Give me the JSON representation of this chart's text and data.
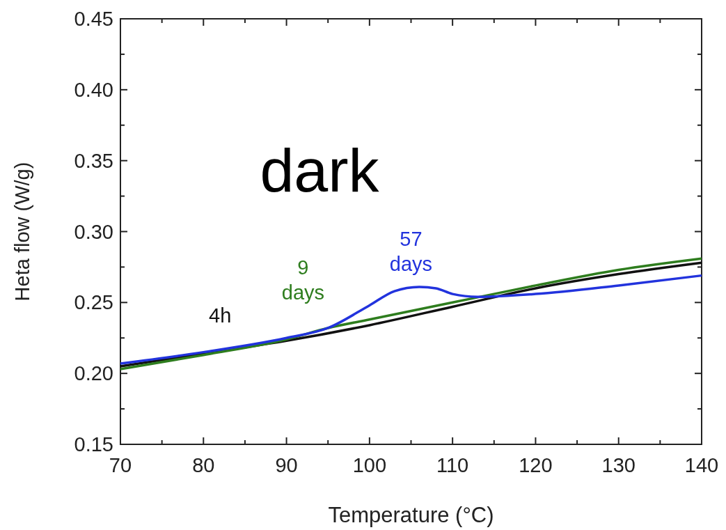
{
  "chart_data": {
    "type": "line",
    "xlabel": "Temperature (°C)",
    "ylabel": "Heta flow (W/g)",
    "annotations": [
      "dark"
    ],
    "xlim": [
      70,
      140
    ],
    "xticks": [
      70,
      80,
      90,
      100,
      110,
      120,
      130,
      140
    ],
    "ylim": [
      0.15,
      0.45
    ],
    "yticks": [
      0.15,
      {
        "value": 0.2,
        "label": "0.20"
      },
      0.25,
      {
        "value": 0.3,
        "label": "0.30"
      },
      0.35,
      {
        "value": 0.4,
        "label": "0.40"
      },
      0.45
    ],
    "grid": false,
    "line_style": "solid",
    "marker": "none",
    "series": [
      {
        "name": "4h",
        "color": "#111111",
        "x": [
          70,
          80,
          90,
          100,
          110,
          120,
          130,
          140
        ],
        "values": [
          0.205,
          0.214,
          0.223,
          0.234,
          0.247,
          0.26,
          0.27,
          0.278
        ]
      },
      {
        "name": "9 days",
        "color": "#2e7d1e",
        "x": [
          70,
          80,
          90,
          95,
          100,
          105,
          110,
          120,
          130,
          140
        ],
        "values": [
          0.203,
          0.213,
          0.224,
          0.232,
          0.238,
          0.244,
          0.25,
          0.262,
          0.273,
          0.281
        ]
      },
      {
        "name": "57 days",
        "color": "#2233dd",
        "x": [
          70,
          80,
          90,
          95,
          100,
          103,
          106,
          108,
          110,
          113,
          120,
          130,
          140
        ],
        "values": [
          0.207,
          0.215,
          0.225,
          0.232,
          0.248,
          0.258,
          0.261,
          0.26,
          0.256,
          0.254,
          0.256,
          0.262,
          0.269
        ]
      }
    ]
  }
}
